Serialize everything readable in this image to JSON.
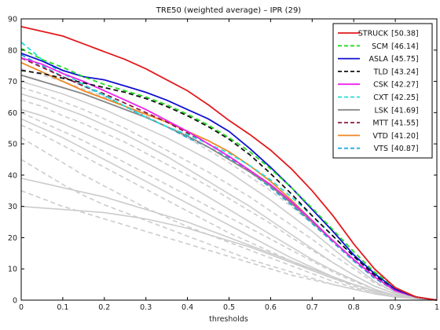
{
  "chart_data": {
    "type": "line",
    "title": "TRE50 (weighted average) – IPR (29)",
    "xlabel": "thresholds",
    "ylabel": "",
    "xlim": [
      0,
      1
    ],
    "ylim": [
      0,
      90
    ],
    "xticks": [
      "0",
      "0.1",
      "0.2",
      "0.3",
      "0.4",
      "0.5",
      "0.6",
      "0.7",
      "0.8",
      "0.9",
      "1"
    ],
    "yticks": [
      "0",
      "10",
      "20",
      "30",
      "40",
      "50",
      "60",
      "70",
      "80",
      "90"
    ],
    "grid": false,
    "legend_position": "top-right",
    "x": [
      0,
      0.05,
      0.1,
      0.15,
      0.2,
      0.25,
      0.3,
      0.35,
      0.4,
      0.45,
      0.5,
      0.55,
      0.6,
      0.65,
      0.7,
      0.75,
      0.8,
      0.85,
      0.9,
      0.95,
      1.0
    ],
    "series": [
      {
        "name": "STRUCK",
        "score": "[50.38]",
        "color": "#e31a1c",
        "dash": "solid",
        "values": [
          87.5,
          86,
          84.5,
          82,
          79.5,
          77,
          74,
          70.5,
          67,
          62.5,
          57.5,
          53,
          48,
          42,
          35,
          27,
          18,
          10,
          4,
          1,
          0
        ]
      },
      {
        "name": "SCM",
        "score": "[46.14]",
        "color": "#22dd22",
        "dash": "dashed",
        "values": [
          80.5,
          77,
          74.5,
          71.5,
          69,
          67,
          65,
          62.5,
          59.5,
          56,
          52,
          47.5,
          42,
          36,
          29.5,
          22.5,
          15.5,
          9,
          4,
          1,
          0
        ]
      },
      {
        "name": "ASLA",
        "score": "[45.75]",
        "color": "#1010d0",
        "dash": "solid",
        "values": [
          79,
          76.5,
          73.5,
          71.5,
          70.5,
          68.5,
          66.5,
          64,
          61,
          58,
          54,
          48.5,
          42.5,
          36,
          29,
          22,
          14.5,
          8.5,
          3.5,
          1,
          0
        ]
      },
      {
        "name": "TLD",
        "score": "[43.24]",
        "color": "#111111",
        "dash": "dashed",
        "values": [
          73.5,
          72.5,
          71,
          69.5,
          68,
          66.5,
          64.5,
          62,
          59,
          55.5,
          51.5,
          46.5,
          40.5,
          34,
          27,
          20.5,
          14,
          8,
          3.5,
          1,
          0
        ]
      },
      {
        "name": "CSK",
        "score": "[42.27]",
        "color": "#ee22ee",
        "dash": "solid",
        "values": [
          77.5,
          75.5,
          72.5,
          70,
          67,
          64,
          61,
          57.5,
          54,
          50,
          46,
          41.5,
          37,
          31.5,
          25.5,
          19,
          13,
          7.5,
          3,
          1,
          0
        ]
      },
      {
        "name": "CXT",
        "score": "[42.25]",
        "color": "#22dddd",
        "dash": "dashed",
        "values": [
          82.5,
          77,
          72.5,
          69,
          65.5,
          62,
          58.5,
          55.5,
          53,
          50,
          47,
          43,
          38.5,
          33,
          27,
          20.5,
          14,
          8,
          3.5,
          1,
          0
        ]
      },
      {
        "name": "LSK",
        "score": "[41.69]",
        "color": "#888888",
        "dash": "solid",
        "values": [
          72,
          70,
          68,
          66,
          63.5,
          61,
          58.5,
          55.5,
          52.5,
          49,
          45,
          41,
          36.5,
          31,
          25,
          19,
          13,
          7.5,
          3,
          1,
          0
        ]
      },
      {
        "name": "MTT",
        "score": "[41.55]",
        "color": "#8b1a3a",
        "dash": "dashed",
        "values": [
          77.5,
          74.5,
          71.5,
          68.5,
          66,
          63,
          60,
          57,
          53.5,
          50,
          46,
          41.5,
          36.5,
          31,
          25,
          19,
          13,
          7.5,
          3,
          1,
          0
        ]
      },
      {
        "name": "VTD",
        "score": "[41.20]",
        "color": "#ee8822",
        "dash": "solid",
        "values": [
          76,
          73,
          70,
          67,
          64.5,
          62,
          59.5,
          57,
          54,
          51,
          47.5,
          43,
          38,
          32,
          25.5,
          19,
          13,
          7.5,
          3,
          1,
          0
        ]
      },
      {
        "name": "VTS",
        "score": "[40.87]",
        "color": "#22aadd",
        "dash": "dashed",
        "values": [
          78.5,
          75,
          71.5,
          68.5,
          65.5,
          62,
          58.5,
          55.5,
          52,
          49,
          45.5,
          41,
          36,
          30.5,
          24.5,
          18.5,
          12.5,
          7,
          3,
          1,
          0
        ]
      }
    ],
    "background_series": [
      {
        "color": "#cccccc",
        "dash": "solid",
        "values": [
          70,
          68,
          66,
          63.5,
          61,
          58,
          55,
          52,
          48.5,
          45,
          41,
          36.5,
          32,
          27,
          22,
          16.5,
          11,
          6,
          2.5,
          0.5,
          0
        ]
      },
      {
        "color": "#cccccc",
        "dash": "solid",
        "values": [
          66,
          64,
          61.5,
          59,
          56,
          53,
          49.5,
          46,
          42,
          38,
          34,
          30,
          25.5,
          21,
          16.5,
          12,
          8,
          4.5,
          2,
          0.5,
          0
        ]
      },
      {
        "color": "#cccccc",
        "dash": "solid",
        "values": [
          61,
          59,
          56.5,
          53.5,
          50.5,
          47.5,
          44,
          40.5,
          37,
          33,
          29,
          25,
          21,
          17,
          13,
          9.5,
          6.5,
          3.5,
          1.5,
          0.5,
          0
        ]
      },
      {
        "color": "#cccccc",
        "dash": "solid",
        "values": [
          58,
          55,
          52,
          48.5,
          45,
          41.5,
          38,
          34.5,
          31,
          27.5,
          24,
          20.5,
          17,
          13.5,
          10.5,
          7.5,
          5,
          3,
          1.5,
          0.5,
          0
        ]
      },
      {
        "color": "#cccccc",
        "dash": "solid",
        "values": [
          39,
          37.5,
          36,
          34.5,
          33,
          31,
          29,
          27,
          25,
          22.5,
          20,
          17.5,
          15,
          12.5,
          10,
          7.5,
          5,
          3,
          1.5,
          0.5,
          0
        ]
      },
      {
        "color": "#cccccc",
        "dash": "solid",
        "values": [
          30,
          29.5,
          29,
          28.5,
          28,
          27,
          26,
          24.5,
          23,
          21,
          19,
          17,
          14.5,
          12,
          9.5,
          7,
          5,
          3,
          1.5,
          0.5,
          0
        ]
      },
      {
        "color": "#cccccc",
        "dash": "dashed",
        "values": [
          74,
          72,
          70,
          67.5,
          65,
          62,
          59,
          55.5,
          52,
          48,
          44,
          39.5,
          35,
          30,
          24.5,
          19,
          13,
          7.5,
          3,
          1,
          0
        ]
      },
      {
        "color": "#cccccc",
        "dash": "dashed",
        "values": [
          68,
          66,
          63.5,
          61,
          58,
          55,
          51.5,
          48,
          44.5,
          41,
          37,
          33,
          28.5,
          24,
          19.5,
          14.5,
          10,
          5.5,
          2.5,
          0.5,
          0
        ]
      },
      {
        "color": "#cccccc",
        "dash": "dashed",
        "values": [
          64,
          62,
          59,
          56.5,
          53.5,
          50.5,
          47,
          43.5,
          40,
          36.5,
          32.5,
          28.5,
          24.5,
          20,
          16,
          12,
          8,
          4.5,
          2,
          0.5,
          0
        ]
      },
      {
        "color": "#cccccc",
        "dash": "dashed",
        "values": [
          60,
          57,
          54,
          51,
          47.5,
          44,
          40.5,
          37,
          33.5,
          30,
          26.5,
          23,
          19.5,
          16,
          12.5,
          9,
          6,
          3.5,
          1.5,
          0.5,
          0
        ]
      },
      {
        "color": "#cccccc",
        "dash": "dashed",
        "values": [
          56,
          53,
          49.5,
          46,
          42.5,
          39,
          35.5,
          32,
          28.5,
          25,
          21.5,
          18.5,
          15.5,
          12.5,
          9.5,
          7,
          4.5,
          2.5,
          1,
          0.5,
          0
        ]
      },
      {
        "color": "#cccccc",
        "dash": "dashed",
        "values": [
          52,
          48,
          44,
          40,
          36.5,
          33,
          29.5,
          26.5,
          23.5,
          21,
          18.5,
          16,
          13.5,
          11,
          8.5,
          6,
          4,
          2.5,
          1,
          0.5,
          0
        ]
      },
      {
        "color": "#cccccc",
        "dash": "dashed",
        "values": [
          45,
          41,
          37,
          33.5,
          30.5,
          28,
          25.5,
          23,
          20.5,
          18,
          15.5,
          13,
          11,
          9,
          7,
          5,
          3.5,
          2,
          1,
          0.5,
          0
        ]
      },
      {
        "color": "#cccccc",
        "dash": "dashed",
        "values": [
          35,
          32.5,
          30,
          28,
          26,
          24,
          22,
          20,
          18,
          16,
          14,
          12,
          10,
          8,
          6.5,
          5,
          3.5,
          2,
          1,
          0.5,
          0
        ]
      }
    ]
  }
}
